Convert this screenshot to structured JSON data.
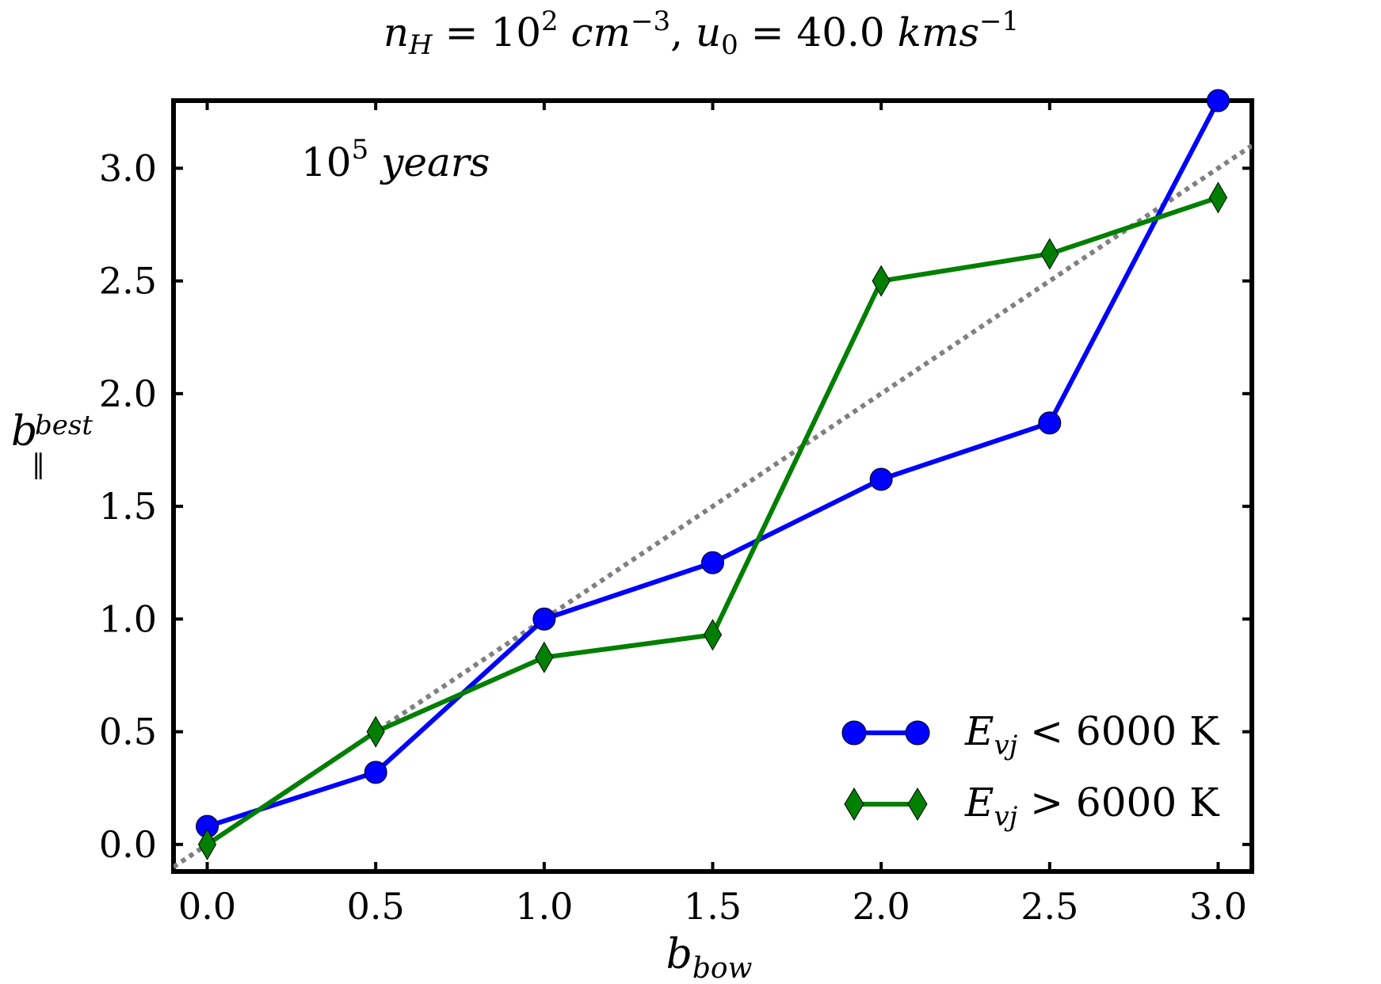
{
  "chart_data": {
    "type": "line",
    "title": {
      "n_symbol": "n",
      "n_sub": "H",
      "eq1": " = 10",
      "exp1": "2",
      "unit1": " cm",
      "unit1_exp": "−3",
      "sep": ", ",
      "u_symbol": "u",
      "u_sub": "0",
      "eq2": " = 40.0 ",
      "unit2": "kms",
      "unit2_exp": "−1"
    },
    "annotation": {
      "base": "10",
      "exp": "5",
      "word": " years"
    },
    "xlabel": {
      "main": "b",
      "sub": "bow"
    },
    "ylabel": {
      "main": "b",
      "sup": "best",
      "sub": "‖"
    },
    "xlim": [
      -0.1,
      3.1
    ],
    "ylim": [
      -0.12,
      3.3
    ],
    "xticks": [
      "0.0",
      "0.5",
      "1.0",
      "1.5",
      "2.0",
      "2.5",
      "3.0"
    ],
    "yticks": [
      "0.0",
      "0.5",
      "1.0",
      "1.5",
      "2.0",
      "2.5",
      "3.0"
    ],
    "grid": false,
    "legend_position": "lower-right",
    "series": [
      {
        "name": "blue-circle",
        "legend": {
          "main": "E",
          "sub": "vj",
          "rest": " < 6000 K"
        },
        "marker": "circle",
        "color": "#0000ff",
        "x": [
          0.0,
          0.5,
          1.0,
          1.5,
          2.0,
          2.5,
          3.0
        ],
        "y": [
          0.08,
          0.32,
          1.0,
          1.25,
          1.62,
          1.87,
          3.3
        ]
      },
      {
        "name": "green-diamond",
        "legend": {
          "main": "E",
          "sub": "vj",
          "rest": " > 6000 K"
        },
        "marker": "diamond",
        "color": "#007f00",
        "x": [
          0.0,
          0.5,
          1.0,
          1.5,
          2.0,
          2.5,
          3.0
        ],
        "y": [
          0.0,
          0.5,
          0.83,
          0.93,
          2.5,
          2.62,
          2.87
        ]
      }
    ],
    "reference_line": {
      "name": "one-to-one",
      "style": "dotted",
      "color": "#808080",
      "slope": 1,
      "intercept": 0
    }
  }
}
